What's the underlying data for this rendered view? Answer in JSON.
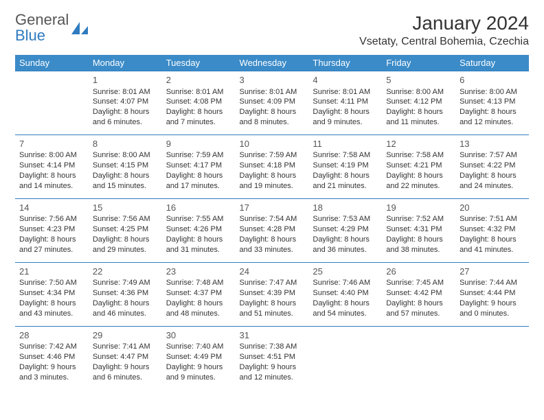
{
  "brand": {
    "word1": "General",
    "word2": "Blue"
  },
  "title": "January 2024",
  "location": "Vsetaty, Central Bohemia, Czechia",
  "colors": {
    "header_bg": "#3b8bc8",
    "header_text": "#ffffff",
    "rule": "#2f7bbf",
    "body_text": "#333333",
    "brand_gray": "#555555",
    "brand_blue": "#2f7bbf"
  },
  "weekdays": [
    "Sunday",
    "Monday",
    "Tuesday",
    "Wednesday",
    "Thursday",
    "Friday",
    "Saturday"
  ],
  "weeks": [
    [
      null,
      {
        "n": "1",
        "sr": "Sunrise: 8:01 AM",
        "ss": "Sunset: 4:07 PM",
        "dl": "Daylight: 8 hours and 6 minutes."
      },
      {
        "n": "2",
        "sr": "Sunrise: 8:01 AM",
        "ss": "Sunset: 4:08 PM",
        "dl": "Daylight: 8 hours and 7 minutes."
      },
      {
        "n": "3",
        "sr": "Sunrise: 8:01 AM",
        "ss": "Sunset: 4:09 PM",
        "dl": "Daylight: 8 hours and 8 minutes."
      },
      {
        "n": "4",
        "sr": "Sunrise: 8:01 AM",
        "ss": "Sunset: 4:11 PM",
        "dl": "Daylight: 8 hours and 9 minutes."
      },
      {
        "n": "5",
        "sr": "Sunrise: 8:00 AM",
        "ss": "Sunset: 4:12 PM",
        "dl": "Daylight: 8 hours and 11 minutes."
      },
      {
        "n": "6",
        "sr": "Sunrise: 8:00 AM",
        "ss": "Sunset: 4:13 PM",
        "dl": "Daylight: 8 hours and 12 minutes."
      }
    ],
    [
      {
        "n": "7",
        "sr": "Sunrise: 8:00 AM",
        "ss": "Sunset: 4:14 PM",
        "dl": "Daylight: 8 hours and 14 minutes."
      },
      {
        "n": "8",
        "sr": "Sunrise: 8:00 AM",
        "ss": "Sunset: 4:15 PM",
        "dl": "Daylight: 8 hours and 15 minutes."
      },
      {
        "n": "9",
        "sr": "Sunrise: 7:59 AM",
        "ss": "Sunset: 4:17 PM",
        "dl": "Daylight: 8 hours and 17 minutes."
      },
      {
        "n": "10",
        "sr": "Sunrise: 7:59 AM",
        "ss": "Sunset: 4:18 PM",
        "dl": "Daylight: 8 hours and 19 minutes."
      },
      {
        "n": "11",
        "sr": "Sunrise: 7:58 AM",
        "ss": "Sunset: 4:19 PM",
        "dl": "Daylight: 8 hours and 21 minutes."
      },
      {
        "n": "12",
        "sr": "Sunrise: 7:58 AM",
        "ss": "Sunset: 4:21 PM",
        "dl": "Daylight: 8 hours and 22 minutes."
      },
      {
        "n": "13",
        "sr": "Sunrise: 7:57 AM",
        "ss": "Sunset: 4:22 PM",
        "dl": "Daylight: 8 hours and 24 minutes."
      }
    ],
    [
      {
        "n": "14",
        "sr": "Sunrise: 7:56 AM",
        "ss": "Sunset: 4:23 PM",
        "dl": "Daylight: 8 hours and 27 minutes."
      },
      {
        "n": "15",
        "sr": "Sunrise: 7:56 AM",
        "ss": "Sunset: 4:25 PM",
        "dl": "Daylight: 8 hours and 29 minutes."
      },
      {
        "n": "16",
        "sr": "Sunrise: 7:55 AM",
        "ss": "Sunset: 4:26 PM",
        "dl": "Daylight: 8 hours and 31 minutes."
      },
      {
        "n": "17",
        "sr": "Sunrise: 7:54 AM",
        "ss": "Sunset: 4:28 PM",
        "dl": "Daylight: 8 hours and 33 minutes."
      },
      {
        "n": "18",
        "sr": "Sunrise: 7:53 AM",
        "ss": "Sunset: 4:29 PM",
        "dl": "Daylight: 8 hours and 36 minutes."
      },
      {
        "n": "19",
        "sr": "Sunrise: 7:52 AM",
        "ss": "Sunset: 4:31 PM",
        "dl": "Daylight: 8 hours and 38 minutes."
      },
      {
        "n": "20",
        "sr": "Sunrise: 7:51 AM",
        "ss": "Sunset: 4:32 PM",
        "dl": "Daylight: 8 hours and 41 minutes."
      }
    ],
    [
      {
        "n": "21",
        "sr": "Sunrise: 7:50 AM",
        "ss": "Sunset: 4:34 PM",
        "dl": "Daylight: 8 hours and 43 minutes."
      },
      {
        "n": "22",
        "sr": "Sunrise: 7:49 AM",
        "ss": "Sunset: 4:36 PM",
        "dl": "Daylight: 8 hours and 46 minutes."
      },
      {
        "n": "23",
        "sr": "Sunrise: 7:48 AM",
        "ss": "Sunset: 4:37 PM",
        "dl": "Daylight: 8 hours and 48 minutes."
      },
      {
        "n": "24",
        "sr": "Sunrise: 7:47 AM",
        "ss": "Sunset: 4:39 PM",
        "dl": "Daylight: 8 hours and 51 minutes."
      },
      {
        "n": "25",
        "sr": "Sunrise: 7:46 AM",
        "ss": "Sunset: 4:40 PM",
        "dl": "Daylight: 8 hours and 54 minutes."
      },
      {
        "n": "26",
        "sr": "Sunrise: 7:45 AM",
        "ss": "Sunset: 4:42 PM",
        "dl": "Daylight: 8 hours and 57 minutes."
      },
      {
        "n": "27",
        "sr": "Sunrise: 7:44 AM",
        "ss": "Sunset: 4:44 PM",
        "dl": "Daylight: 9 hours and 0 minutes."
      }
    ],
    [
      {
        "n": "28",
        "sr": "Sunrise: 7:42 AM",
        "ss": "Sunset: 4:46 PM",
        "dl": "Daylight: 9 hours and 3 minutes."
      },
      {
        "n": "29",
        "sr": "Sunrise: 7:41 AM",
        "ss": "Sunset: 4:47 PM",
        "dl": "Daylight: 9 hours and 6 minutes."
      },
      {
        "n": "30",
        "sr": "Sunrise: 7:40 AM",
        "ss": "Sunset: 4:49 PM",
        "dl": "Daylight: 9 hours and 9 minutes."
      },
      {
        "n": "31",
        "sr": "Sunrise: 7:38 AM",
        "ss": "Sunset: 4:51 PM",
        "dl": "Daylight: 9 hours and 12 minutes."
      },
      null,
      null,
      null
    ]
  ]
}
